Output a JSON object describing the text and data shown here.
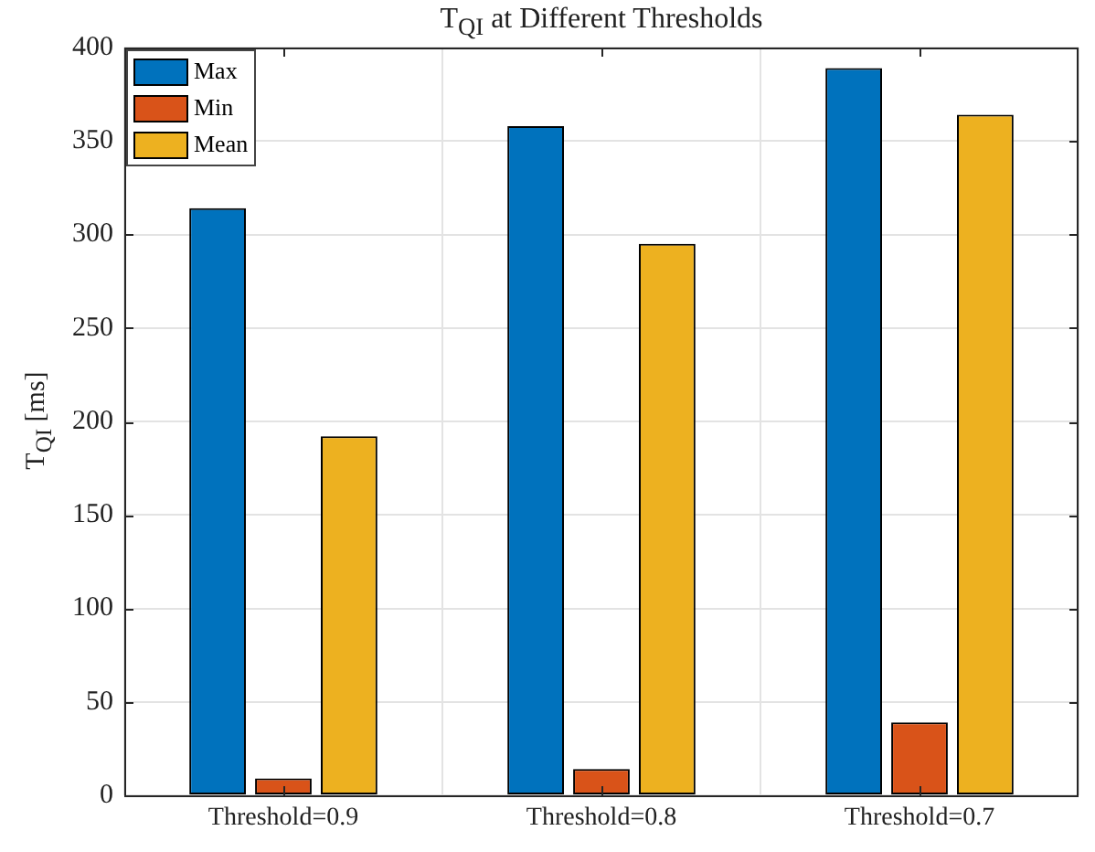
{
  "chart_data": {
    "type": "bar",
    "title": "T$_{QI}$ at Different Thresholds",
    "ylabel": "T$_{QI}$ [ms]",
    "categories": [
      "Threshold=0.9",
      "Threshold=0.8",
      "Threshold=0.7"
    ],
    "series": [
      {
        "name": "Max",
        "color": "#0072bd",
        "values": [
          314,
          358,
          389
        ]
      },
      {
        "name": "Min",
        "color": "#d95319",
        "values": [
          9,
          14,
          39
        ]
      },
      {
        "name": "Mean",
        "color": "#edb120",
        "values": [
          192,
          295,
          364
        ]
      }
    ],
    "ylim": [
      0,
      400
    ],
    "yticks": [
      0,
      50,
      100,
      150,
      200,
      250,
      300,
      350,
      400
    ],
    "grid": true,
    "legend": "top left"
  }
}
